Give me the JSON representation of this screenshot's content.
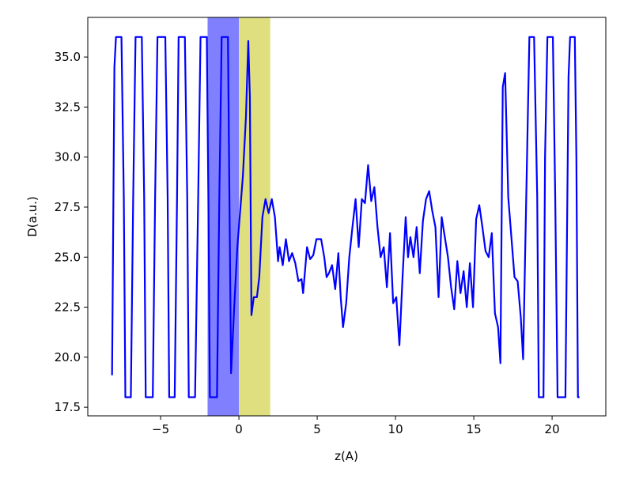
{
  "chart_data": {
    "type": "line",
    "xlabel": "z(A)",
    "ylabel": "D(a.u.)",
    "xlim": [
      -9.65,
      23.43
    ],
    "ylim": [
      17.07,
      36.98
    ],
    "xticks": [
      {
        "value": -5,
        "label": "−5"
      },
      0,
      5,
      10,
      15,
      20
    ],
    "yticks": [
      17.5,
      {
        "value": 20,
        "label": "20.0"
      },
      22.5,
      {
        "value": 25,
        "label": "25.0"
      },
      27.5,
      {
        "value": 30,
        "label": "30.0"
      },
      32.5,
      {
        "value": 35,
        "label": "35.0"
      }
    ],
    "spans": [
      {
        "x0": -2,
        "x1": 0,
        "color": "#8080ff"
      },
      {
        "x0": 0,
        "x1": 2,
        "color": "#dfdf80"
      }
    ],
    "x": [
      -8.1,
      -7.95,
      -7.85,
      -7.5,
      -7.35,
      -7.25,
      -6.9,
      -6.75,
      -6.6,
      -6.2,
      -6.05,
      -5.95,
      -5.5,
      -5.35,
      -5.2,
      -4.7,
      -4.55,
      -4.45,
      -4.1,
      -3.95,
      -3.85,
      -3.45,
      -3.3,
      -3.2,
      -2.8,
      -2.6,
      -2.45,
      -2.05,
      -1.95,
      -1.85,
      -1.4,
      -1.25,
      -1.1,
      -0.7,
      -0.5,
      -0.3,
      -0.1,
      0.05,
      0.25,
      0.45,
      0.6,
      0.7,
      0.8,
      0.95,
      1.15,
      1.3,
      1.5,
      1.7,
      1.9,
      2.1,
      2.3,
      2.5,
      2.6,
      2.8,
      3.0,
      3.2,
      3.4,
      3.6,
      3.8,
      4.0,
      4.1,
      4.35,
      4.55,
      4.75,
      4.95,
      5.25,
      5.45,
      5.6,
      5.75,
      5.95,
      6.15,
      6.35,
      6.5,
      6.65,
      6.85,
      7.05,
      7.25,
      7.45,
      7.65,
      7.85,
      8.05,
      8.25,
      8.45,
      8.65,
      8.85,
      9.05,
      9.25,
      9.45,
      9.65,
      9.85,
      10.05,
      10.25,
      10.45,
      10.65,
      10.8,
      10.95,
      11.15,
      11.35,
      11.55,
      11.75,
      11.95,
      12.15,
      12.35,
      12.55,
      12.75,
      12.95,
      13.15,
      13.35,
      13.55,
      13.75,
      13.95,
      14.15,
      14.35,
      14.55,
      14.75,
      14.95,
      15.15,
      15.35,
      15.55,
      15.75,
      15.95,
      16.15,
      16.35,
      16.55,
      16.7,
      16.85,
      17.0,
      17.2,
      17.4,
      17.6,
      17.8,
      18.0,
      18.15,
      18.3,
      18.45,
      18.55,
      18.85,
      19.05,
      19.15,
      19.45,
      19.55,
      19.7,
      20.05,
      20.2,
      20.35,
      20.85,
      21.05,
      21.15,
      21.45,
      21.55,
      21.65,
      21.75
    ],
    "series": [
      {
        "name": "D",
        "color": "#0000ff",
        "values": [
          19.1,
          34.5,
          36,
          36,
          28,
          18,
          18,
          28,
          36,
          36,
          28,
          18,
          18,
          28,
          36,
          36,
          28,
          18,
          18,
          28,
          36,
          36,
          28,
          18,
          18,
          28,
          36,
          36,
          28,
          18,
          18,
          28,
          36,
          36,
          19.2,
          22.5,
          25.5,
          27,
          29,
          32,
          35.8,
          33,
          22.1,
          23,
          23,
          24,
          27,
          27.9,
          27.2,
          27.9,
          27,
          24.8,
          25.5,
          24.6,
          25.9,
          24.8,
          25.2,
          24.7,
          23.8,
          23.9,
          23.2,
          25.5,
          24.9,
          25.1,
          25.9,
          25.9,
          25,
          24,
          24.2,
          24.6,
          23.4,
          25.2,
          23,
          21.5,
          22.7,
          25,
          26.5,
          27.9,
          25.5,
          27.9,
          27.7,
          29.6,
          27.8,
          28.5,
          26.5,
          25,
          25.5,
          23.5,
          26.2,
          22.7,
          23,
          20.6,
          24,
          27,
          25,
          26,
          25,
          26.5,
          24.2,
          26.8,
          27.9,
          28.3,
          27.3,
          26.5,
          23,
          27,
          26,
          25,
          23.5,
          22.4,
          24.8,
          23.2,
          24.3,
          22.5,
          24.7,
          22.5,
          26.9,
          27.6,
          26.5,
          25.3,
          25,
          26.2,
          22.2,
          21.5,
          19.7,
          33.5,
          34.2,
          28,
          26,
          24,
          23.8,
          22,
          19.9,
          26,
          32,
          36,
          36,
          28,
          18,
          18,
          30,
          36,
          36,
          28,
          18,
          18,
          34,
          36,
          36,
          30,
          18,
          18
        ]
      }
    ]
  }
}
